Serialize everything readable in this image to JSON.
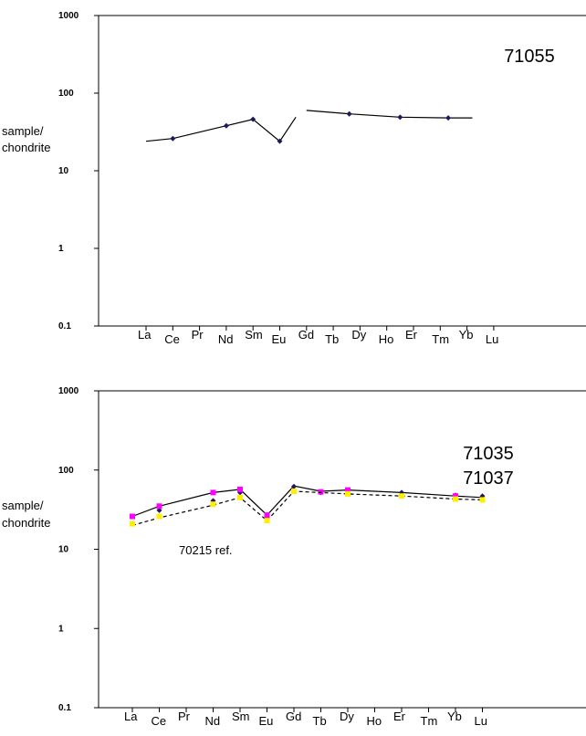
{
  "chart_data": [
    {
      "type": "line",
      "scale": "log",
      "ylim": [
        0.1,
        1000
      ],
      "yticks": [
        "1000",
        "100",
        "10",
        "1",
        "0.1"
      ],
      "categories": [
        "La",
        "Ce",
        "Pr",
        "Nd",
        "Sm",
        "Eu",
        "Gd",
        "Tb",
        "Dy",
        "Ho",
        "Er",
        "Tm",
        "Yb",
        "Lu"
      ],
      "ylabel": [
        "sample/",
        "chondrite"
      ],
      "annotation": [
        "71055"
      ],
      "series": [
        {
          "color": "#000000",
          "marker_color": "#1a1a5e",
          "dash": "solid",
          "segments": [
            [
              [
                0,
                24
              ],
              [
                1,
                26
              ],
              [
                3,
                38
              ],
              [
                4,
                46
              ],
              [
                5,
                24
              ],
              [
                5.6,
                49
              ]
            ],
            [
              [
                6,
                60
              ],
              [
                7.6,
                54
              ],
              [
                9.5,
                49
              ],
              [
                11.3,
                48
              ],
              [
                12.2,
                48
              ]
            ]
          ],
          "markers": [
            [
              1,
              26
            ],
            [
              3,
              38
            ],
            [
              4,
              46
            ],
            [
              5,
              24
            ],
            [
              7.6,
              54
            ],
            [
              9.5,
              49
            ],
            [
              11.3,
              48
            ]
          ]
        }
      ]
    },
    {
      "type": "line",
      "scale": "log",
      "ylim": [
        0.1,
        1000
      ],
      "yticks": [
        "1000",
        "100",
        "10",
        "1",
        "0.1"
      ],
      "categories": [
        "La",
        "Ce",
        "Pr",
        "Nd",
        "Sm",
        "Eu",
        "Gd",
        "Tb",
        "Dy",
        "Ho",
        "Er",
        "Tm",
        "Yb",
        "Lu"
      ],
      "ylabel": [
        "sample/",
        "chondrite"
      ],
      "annotation": [
        "71035",
        "71037"
      ],
      "note": "70215 ref.",
      "series": [
        {
          "color": "#000000",
          "marker_color": "#1a1a5e",
          "dash": "solid",
          "segments": [
            [
              [
                0,
                26
              ],
              [
                1,
                35
              ],
              [
                3,
                52
              ],
              [
                4,
                57
              ],
              [
                5,
                27
              ],
              [
                6,
                63
              ],
              [
                7,
                54
              ],
              [
                8,
                56
              ],
              [
                10,
                52
              ],
              [
                12,
                47
              ],
              [
                13,
                45
              ]
            ]
          ],
          "markers": [
            [
              1,
              31
            ],
            [
              3,
              41
            ],
            [
              4,
              52
            ],
            [
              5,
              25
            ],
            [
              6,
              62
            ],
            [
              7,
              52
            ],
            [
              8,
              55
            ],
            [
              10,
              52
            ],
            [
              12,
              48
            ],
            [
              13,
              47
            ]
          ]
        },
        {
          "color": "#000000",
          "marker_color": "#ff00ff",
          "dash": "none",
          "markers": [
            [
              0,
              26
            ],
            [
              1,
              35
            ],
            [
              3,
              52
            ],
            [
              4,
              57
            ],
            [
              5,
              27
            ],
            [
              7,
              53
            ],
            [
              8,
              56
            ],
            [
              12,
              47
            ]
          ]
        },
        {
          "color": "#000000",
          "marker_color": "#ffee00",
          "dash": "4,3",
          "segments": [
            [
              [
                0,
                20
              ],
              [
                1,
                25
              ],
              [
                3,
                36
              ],
              [
                4,
                45
              ],
              [
                5,
                23
              ],
              [
                6,
                54
              ],
              [
                7,
                52
              ],
              [
                8,
                50
              ],
              [
                10,
                47
              ],
              [
                12,
                43
              ],
              [
                13,
                42
              ]
            ]
          ],
          "markers": [
            [
              0,
              21
            ],
            [
              1,
              26
            ],
            [
              3,
              37
            ],
            [
              4,
              45
            ],
            [
              5,
              23
            ],
            [
              6,
              54
            ],
            [
              8,
              50
            ],
            [
              10,
              47
            ],
            [
              12,
              43
            ],
            [
              13,
              42
            ]
          ]
        }
      ]
    }
  ]
}
